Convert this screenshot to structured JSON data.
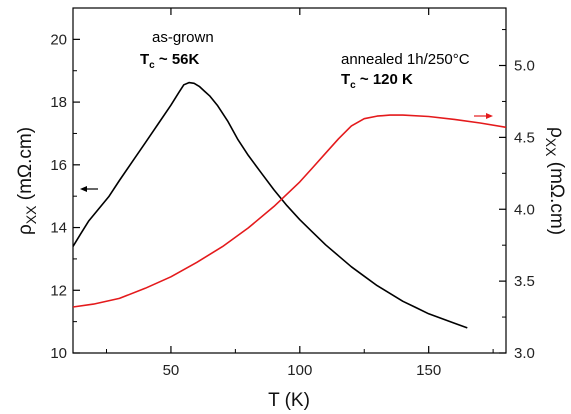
{
  "chart_data": {
    "type": "line",
    "xlabel": "T (K)",
    "ylabel_left": {
      "main": "ρ",
      "sub": "XX",
      "unit": "(mΩ.cm)"
    },
    "ylabel_right": {
      "main": "ρ",
      "sub": "XX",
      "unit": "(mΩ.cm)"
    },
    "xlim": [
      12,
      180
    ],
    "ylim_left": [
      10,
      21
    ],
    "ylim_right": [
      3.0,
      5.4
    ],
    "x_ticks": [
      "50",
      "100",
      "150"
    ],
    "y_left_ticks": [
      "10",
      "12",
      "14",
      "16",
      "18",
      "20"
    ],
    "y_right_ticks": [
      "3.0",
      "3.5",
      "4.0",
      "4.5",
      "5.0"
    ],
    "grid": false,
    "series": [
      {
        "axis": "left",
        "color": "#000000",
        "x": [
          12,
          15,
          18,
          22,
          26,
          30,
          35,
          40,
          45,
          50,
          53,
          55,
          57,
          59,
          61,
          63,
          65,
          68,
          72,
          76,
          80,
          85,
          90,
          95,
          100,
          105,
          110,
          115,
          120,
          125,
          130,
          135,
          140,
          145,
          150,
          155,
          160,
          165
        ],
        "y": [
          13.4,
          13.8,
          14.2,
          14.6,
          15.0,
          15.5,
          16.1,
          16.7,
          17.3,
          17.9,
          18.3,
          18.55,
          18.62,
          18.6,
          18.5,
          18.35,
          18.2,
          17.9,
          17.4,
          16.8,
          16.3,
          15.75,
          15.2,
          14.7,
          14.25,
          13.85,
          13.45,
          13.1,
          12.75,
          12.45,
          12.15,
          11.9,
          11.65,
          11.45,
          11.25,
          11.1,
          10.95,
          10.8
        ]
      },
      {
        "axis": "right",
        "color": "#e41a1c",
        "x": [
          12,
          20,
          30,
          40,
          50,
          60,
          70,
          80,
          90,
          100,
          105,
          110,
          115,
          120,
          125,
          130,
          135,
          140,
          150,
          160,
          170,
          180
        ],
        "y": [
          3.32,
          3.34,
          3.38,
          3.45,
          3.53,
          3.63,
          3.74,
          3.87,
          4.02,
          4.19,
          4.29,
          4.39,
          4.49,
          4.58,
          4.63,
          4.648,
          4.655,
          4.655,
          4.645,
          4.625,
          4.6,
          4.57
        ]
      }
    ],
    "annotations": {
      "as_grown": {
        "line1": "as-grown",
        "tc_main": "T",
        "tc_sub": "c",
        "tc_rest": " ~ 56K"
      },
      "annealed": {
        "line1": "annealed 1h/250°C",
        "tc_main": "T",
        "tc_sub": "c",
        "tc_rest": " ~ 120 K"
      }
    }
  }
}
